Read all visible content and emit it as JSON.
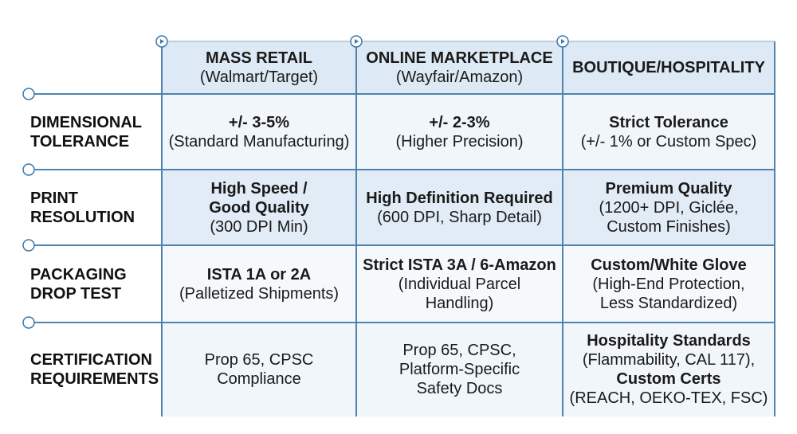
{
  "table": {
    "columns": [
      [
        {
          "bold": "MASS RETAIL"
        },
        {
          "text": "(Walmart/Target)"
        }
      ],
      [
        {
          "bold": "ONLINE MARKETPLACE"
        },
        {
          "text": "(Wayfair/Amazon)"
        }
      ],
      [
        {
          "bold": "BOUTIQUE/HOSPITALITY"
        }
      ]
    ],
    "rows": [
      {
        "label": [
          "DIMENSIONAL",
          "TOLERANCE"
        ],
        "cells": [
          [
            {
              "bold": "+/- 3-5%"
            },
            {
              "text": "(Standard Manufacturing)"
            }
          ],
          [
            {
              "bold": "+/- 2-3%"
            },
            {
              "text": "(Higher Precision)"
            }
          ],
          [
            {
              "bold": "Strict Tolerance"
            },
            {
              "text": "(+/- 1% or Custom Spec)"
            }
          ]
        ]
      },
      {
        "label": [
          "PRINT",
          "RESOLUTION"
        ],
        "cells": [
          [
            {
              "bold": "High Speed /"
            },
            {
              "bold": "Good Quality"
            },
            {
              "text": "(300 DPI Min)"
            }
          ],
          [
            {
              "bold": "High Definition Required"
            },
            {
              "text": "(600 DPI, Sharp Detail)"
            }
          ],
          [
            {
              "bold": "Premium Quality"
            },
            {
              "text": "(1200+ DPI, Giclée,"
            },
            {
              "text": "Custom Finishes)"
            }
          ]
        ]
      },
      {
        "label": [
          "PACKAGING",
          "DROP TEST"
        ],
        "cells": [
          [
            {
              "bold": "ISTA 1A or 2A"
            },
            {
              "text": "(Palletized Shipments)"
            }
          ],
          [
            {
              "bold": "Strict ISTA 3A / 6-Amazon"
            },
            {
              "text": "(Individual Parcel"
            },
            {
              "text": "Handling)"
            }
          ],
          [
            {
              "bold": "Custom/White Glove"
            },
            {
              "text": "(High-End Protection,"
            },
            {
              "text": "Less Standardized)"
            }
          ]
        ]
      },
      {
        "label": [
          "CERTIFICATION",
          "REQUIREMENTS"
        ],
        "cells": [
          [
            {
              "text": "Prop 65, CPSC"
            },
            {
              "text": "Compliance"
            }
          ],
          [
            {
              "text": "Prop 65, CPSC,"
            },
            {
              "text": "Platform-Specific"
            },
            {
              "text": "Safety Docs"
            }
          ],
          [
            {
              "bold": "Hospitality Standards"
            },
            {
              "text": "(Flammability, CAL 117),"
            },
            {
              "bold": "Custom Certs"
            },
            {
              "text": "(REACH, OEKO-TEX, FSC)"
            }
          ]
        ]
      }
    ]
  }
}
